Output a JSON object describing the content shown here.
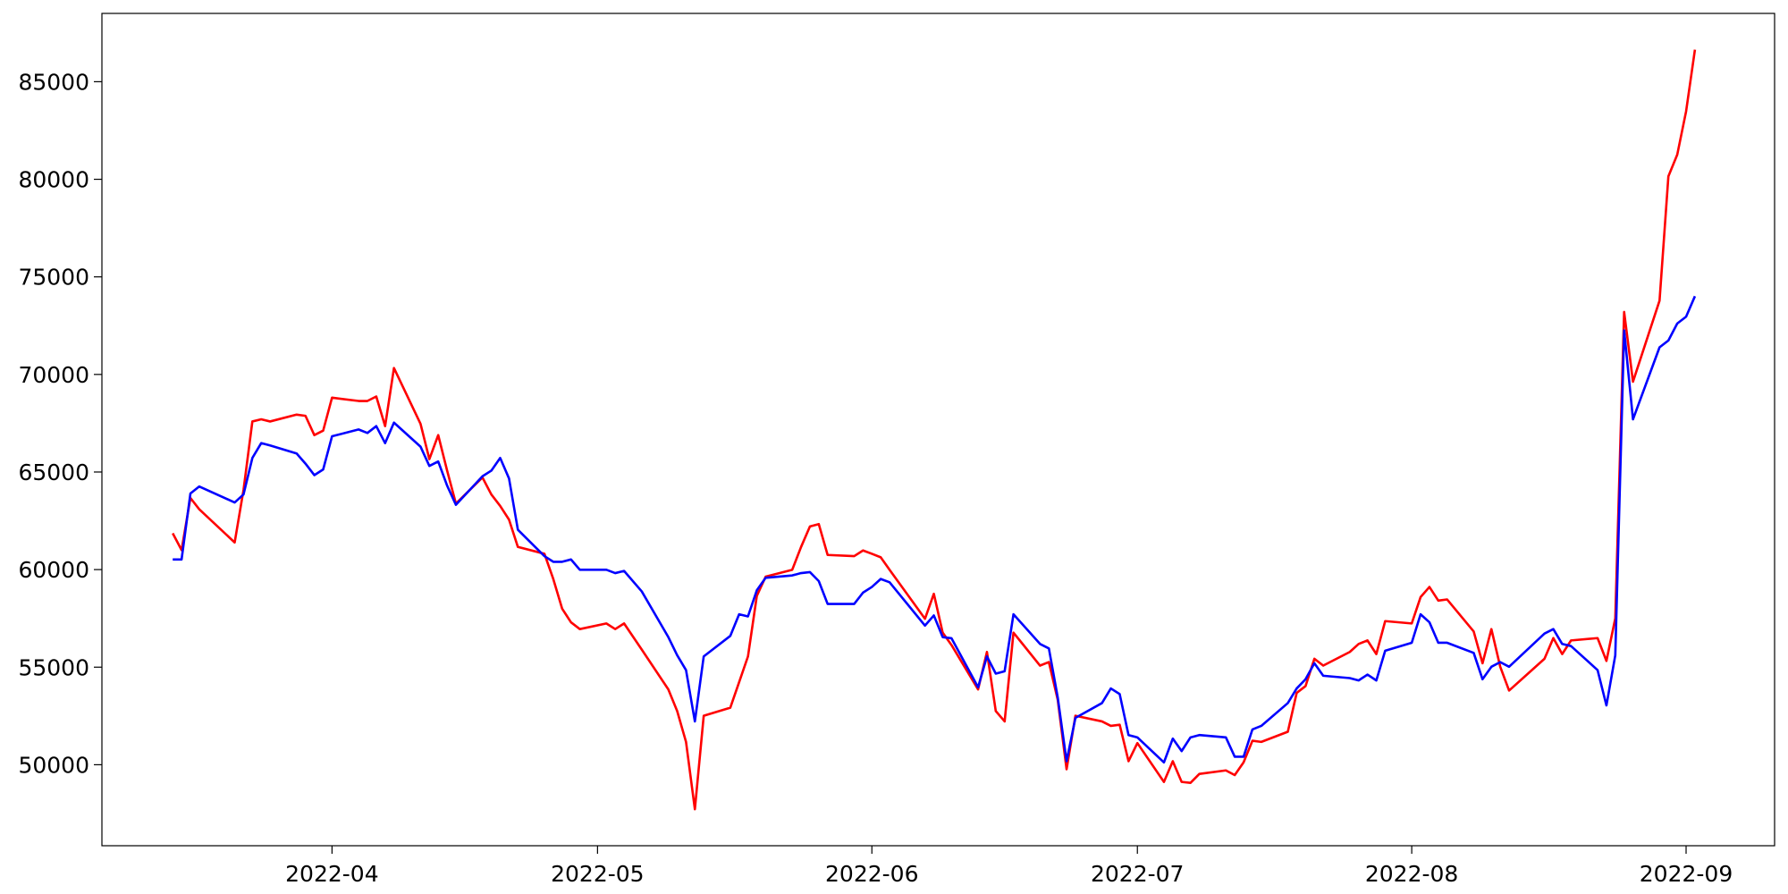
{
  "chart_data": {
    "type": "line",
    "x": [
      "2022-03-14",
      "2022-03-15",
      "2022-03-16",
      "2022-03-17",
      "2022-03-21",
      "2022-03-22",
      "2022-03-23",
      "2022-03-24",
      "2022-03-25",
      "2022-03-28",
      "2022-03-29",
      "2022-03-30",
      "2022-03-31",
      "2022-04-01",
      "2022-04-04",
      "2022-04-05",
      "2022-04-06",
      "2022-04-07",
      "2022-04-08",
      "2022-04-11",
      "2022-04-12",
      "2022-04-13",
      "2022-04-14",
      "2022-04-15",
      "2022-04-18",
      "2022-04-19",
      "2022-04-20",
      "2022-04-21",
      "2022-04-22",
      "2022-04-25",
      "2022-04-26",
      "2022-04-27",
      "2022-04-28",
      "2022-04-29",
      "2022-05-02",
      "2022-05-03",
      "2022-05-04",
      "2022-05-06",
      "2022-05-09",
      "2022-05-10",
      "2022-05-11",
      "2022-05-12",
      "2022-05-13",
      "2022-05-16",
      "2022-05-17",
      "2022-05-18",
      "2022-05-19",
      "2022-05-20",
      "2022-05-23",
      "2022-05-24",
      "2022-05-25",
      "2022-05-26",
      "2022-05-27",
      "2022-05-30",
      "2022-05-31",
      "2022-06-01",
      "2022-06-02",
      "2022-06-03",
      "2022-06-07",
      "2022-06-08",
      "2022-06-09",
      "2022-06-10",
      "2022-06-13",
      "2022-06-14",
      "2022-06-15",
      "2022-06-16",
      "2022-06-17",
      "2022-06-20",
      "2022-06-21",
      "2022-06-22",
      "2022-06-23",
      "2022-06-24",
      "2022-06-27",
      "2022-06-28",
      "2022-06-29",
      "2022-06-30",
      "2022-07-01",
      "2022-07-04",
      "2022-07-05",
      "2022-07-06",
      "2022-07-07",
      "2022-07-08",
      "2022-07-11",
      "2022-07-12",
      "2022-07-13",
      "2022-07-14",
      "2022-07-15",
      "2022-07-18",
      "2022-07-19",
      "2022-07-20",
      "2022-07-21",
      "2022-07-22",
      "2022-07-25",
      "2022-07-26",
      "2022-07-27",
      "2022-07-28",
      "2022-07-29",
      "2022-08-01",
      "2022-08-02",
      "2022-08-03",
      "2022-08-04",
      "2022-08-05",
      "2022-08-08",
      "2022-08-09",
      "2022-08-10",
      "2022-08-11",
      "2022-08-12",
      "2022-08-16",
      "2022-08-17",
      "2022-08-18",
      "2022-08-19",
      "2022-08-22",
      "2022-08-23",
      "2022-08-24",
      "2022-08-25",
      "2022-08-26",
      "2022-08-29",
      "2022-08-30",
      "2022-08-31",
      "2022-09-01",
      "2022-09-02"
    ],
    "series": [
      {
        "color": "#ff0000",
        "values": [
          61860,
          61000,
          63670,
          63090,
          61390,
          64080,
          67590,
          67700,
          67590,
          67940,
          67880,
          66890,
          67120,
          68810,
          68640,
          68640,
          68870,
          67350,
          70330,
          67470,
          65660,
          66890,
          65080,
          63380,
          64720,
          63850,
          63260,
          62560,
          61160,
          60810,
          59520,
          58000,
          57300,
          56950,
          57240,
          56950,
          57240,
          55900,
          53860,
          52750,
          51170,
          47720,
          52510,
          52920,
          54230,
          55550,
          58650,
          59640,
          59990,
          61160,
          62210,
          62330,
          60750,
          60690,
          60980,
          60810,
          60630,
          59990,
          57480,
          58760,
          56770,
          56130,
          53860,
          55780,
          52750,
          52220,
          56770,
          55080,
          55260,
          53330,
          49770,
          52510,
          52220,
          51990,
          52050,
          50180,
          51110,
          49120,
          50180,
          49120,
          49070,
          49530,
          49710,
          49470,
          50120,
          51230,
          51170,
          51690,
          53680,
          54030,
          55430,
          55080,
          55780,
          56190,
          56370,
          55670,
          57360,
          57240,
          58590,
          59110,
          58410,
          58470,
          56830,
          55200,
          56950,
          55020,
          53800,
          55430,
          56490,
          55670,
          56370,
          56490,
          55320,
          57500,
          73200,
          69630,
          73780,
          80150,
          81260,
          83480,
          86640
        ]
      },
      {
        "color": "#0000ff",
        "values": [
          60520,
          60520,
          63900,
          64260,
          63440,
          63850,
          65720,
          66480,
          66360,
          65950,
          65430,
          64840,
          65130,
          66830,
          67180,
          67000,
          67350,
          66480,
          67530,
          66300,
          65310,
          65540,
          64310,
          63320,
          64780,
          65070,
          65720,
          64670,
          62040,
          60690,
          60400,
          60400,
          60520,
          59990,
          59990,
          59820,
          59930,
          58880,
          56540,
          55610,
          54850,
          52220,
          55550,
          56600,
          57710,
          57600,
          58940,
          59580,
          59700,
          59820,
          59870,
          59410,
          58240,
          58240,
          58820,
          59110,
          59520,
          59350,
          57130,
          57650,
          56540,
          56480,
          53970,
          55550,
          54670,
          54790,
          57710,
          56190,
          55960,
          53450,
          50180,
          52400,
          53160,
          53910,
          53620,
          51520,
          51400,
          50120,
          51340,
          50700,
          51400,
          51520,
          51400,
          50410,
          50410,
          51810,
          51990,
          53160,
          53910,
          54380,
          55200,
          54560,
          54440,
          54320,
          54620,
          54320,
          55840,
          56250,
          57710,
          57300,
          56250,
          56250,
          55730,
          54380,
          55020,
          55260,
          55020,
          56720,
          56950,
          56190,
          56080,
          54850,
          53040,
          55610,
          72260,
          67700,
          71390,
          71740,
          72610,
          72960,
          74010
        ]
      }
    ],
    "xlim": [
      "2022-03-06",
      "2022-09-11"
    ],
    "xticks": [
      {
        "value": "2022-04-01",
        "label": "2022-04"
      },
      {
        "value": "2022-05-01",
        "label": "2022-05"
      },
      {
        "value": "2022-06-01",
        "label": "2022-06"
      },
      {
        "value": "2022-07-01",
        "label": "2022-07"
      },
      {
        "value": "2022-08-01",
        "label": "2022-08"
      },
      {
        "value": "2022-09-01",
        "label": "2022-09"
      }
    ],
    "ylim": [
      45850,
      88500
    ],
    "yticks": [
      50000,
      55000,
      60000,
      65000,
      70000,
      75000,
      80000,
      85000
    ]
  }
}
